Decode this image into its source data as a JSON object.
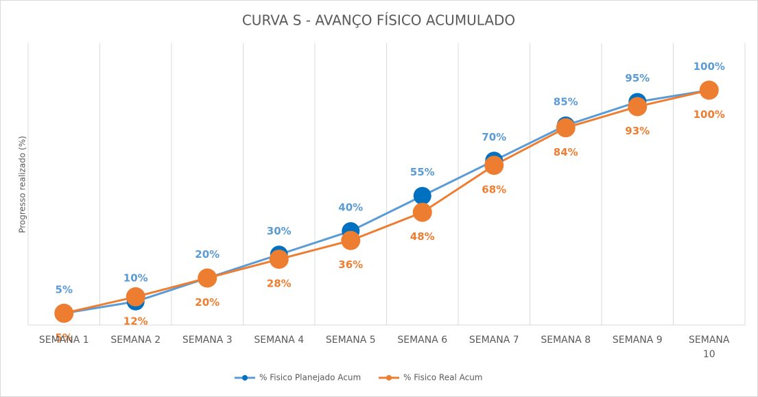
{
  "chart_data": {
    "type": "line",
    "title": "CURVA S - AVANÇO FÍSICO ACUMULADO",
    "y_label": "Progresso realizado (%)",
    "categories": [
      "SEMANA 1",
      "SEMANA 2",
      "SEMANA 3",
      "SEMANA 4",
      "SEMANA 5",
      "SEMANA 6",
      "SEMANA 7",
      "SEMANA 8",
      "SEMANA 9",
      "SEMANA 10"
    ],
    "series": [
      {
        "name": "% Fisico Planejado Acum",
        "color": "#0070c0",
        "line_color": "#5b9bd5",
        "label_color": "#5b9bd5",
        "values": [
          5,
          10,
          20,
          30,
          40,
          55,
          70,
          85,
          95,
          100
        ],
        "value_labels": [
          "5%",
          "10%",
          "20%",
          "30%",
          "40%",
          "55%",
          "70%",
          "85%",
          "95%",
          "100%"
        ]
      },
      {
        "name": "% Fisico Real Acum",
        "color": "#ed7d31",
        "line_color": "#ed7d31",
        "label_color": "#ed7d31",
        "values": [
          5,
          12,
          20,
          28,
          36,
          48,
          68,
          84,
          93,
          100
        ],
        "value_labels": [
          "5%",
          "12%",
          "20%",
          "28%",
          "36%",
          "48%",
          "68%",
          "84%",
          "93%",
          "100%"
        ]
      }
    ],
    "ylim": [
      0,
      120
    ],
    "grid": true
  }
}
